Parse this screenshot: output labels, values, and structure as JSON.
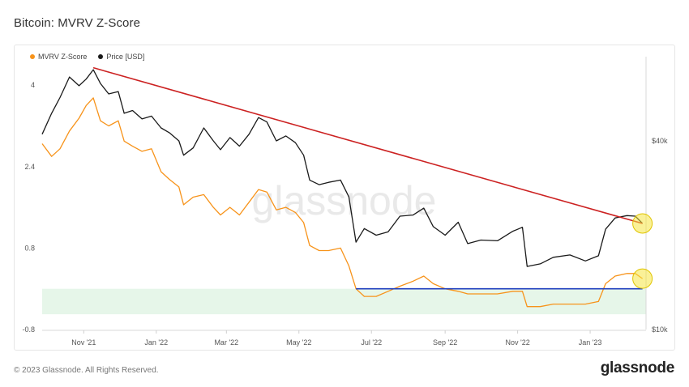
{
  "title": "Bitcoin: MVRV Z-Score",
  "legend": {
    "mvrv_label": "MVRV Z-Score",
    "price_label": "Price [USD]"
  },
  "watermark": "glassnode",
  "footer": {
    "copyright": "© 2023 Glassnode. All Rights Reserved.",
    "logo": "glassnode"
  },
  "colors": {
    "mvrv": "#f7931a",
    "price": "#1a1a1a",
    "trend_price": "#cc2222",
    "trend_mvrv": "#1f3fbf",
    "band": "#e6f6e9",
    "highlight": "#f5e642"
  },
  "chart_data": {
    "type": "line",
    "title": "Bitcoin: MVRV Z-Score",
    "x_tick_labels": [
      "Nov '21",
      "Jan '22",
      "Mar '22",
      "May '22",
      "Jul '22",
      "Sep '22",
      "Nov '22",
      "Jan '23"
    ],
    "x_tick_dates": [
      "2021-11-01",
      "2022-01-01",
      "2022-03-01",
      "2022-05-01",
      "2022-07-01",
      "2022-09-01",
      "2022-11-01",
      "2023-01-01"
    ],
    "x_range": [
      "2021-09-27",
      "2023-02-17"
    ],
    "y_left": {
      "ticks": [
        -0.8,
        0.8,
        2.4,
        4
      ],
      "tick_labels": [
        "-0.8",
        "0.8",
        "2.4",
        "4"
      ],
      "range": [
        -0.8,
        4.4
      ]
    },
    "y_right": {
      "scale": "log",
      "ticks": [
        10000,
        40000
      ],
      "tick_labels": [
        "$10k",
        "$40k"
      ],
      "range": [
        10000,
        70000
      ]
    },
    "green_band": [
      -0.5,
      0.0
    ],
    "series": [
      {
        "name": "MVRV Z-Score",
        "axis": "left",
        "points": [
          [
            "2021-09-27",
            2.85
          ],
          [
            "2021-10-05",
            2.6
          ],
          [
            "2021-10-12",
            2.75
          ],
          [
            "2021-10-20",
            3.1
          ],
          [
            "2021-10-28",
            3.35
          ],
          [
            "2021-11-03",
            3.6
          ],
          [
            "2021-11-09",
            3.75
          ],
          [
            "2021-11-15",
            3.3
          ],
          [
            "2021-11-22",
            3.2
          ],
          [
            "2021-11-30",
            3.3
          ],
          [
            "2021-12-05",
            2.9
          ],
          [
            "2021-12-12",
            2.8
          ],
          [
            "2021-12-20",
            2.7
          ],
          [
            "2021-12-28",
            2.75
          ],
          [
            "2022-01-05",
            2.3
          ],
          [
            "2022-01-12",
            2.15
          ],
          [
            "2022-01-20",
            2.0
          ],
          [
            "2022-01-24",
            1.65
          ],
          [
            "2022-02-01",
            1.8
          ],
          [
            "2022-02-10",
            1.85
          ],
          [
            "2022-02-18",
            1.6
          ],
          [
            "2022-02-24",
            1.45
          ],
          [
            "2022-03-04",
            1.6
          ],
          [
            "2022-03-12",
            1.45
          ],
          [
            "2022-03-20",
            1.7
          ],
          [
            "2022-03-28",
            1.95
          ],
          [
            "2022-04-04",
            1.9
          ],
          [
            "2022-04-12",
            1.55
          ],
          [
            "2022-04-20",
            1.6
          ],
          [
            "2022-04-28",
            1.5
          ],
          [
            "2022-05-05",
            1.3
          ],
          [
            "2022-05-10",
            0.85
          ],
          [
            "2022-05-18",
            0.75
          ],
          [
            "2022-05-26",
            0.75
          ],
          [
            "2022-06-05",
            0.8
          ],
          [
            "2022-06-12",
            0.45
          ],
          [
            "2022-06-18",
            0.0
          ],
          [
            "2022-06-25",
            -0.15
          ],
          [
            "2022-07-05",
            -0.15
          ],
          [
            "2022-07-15",
            -0.05
          ],
          [
            "2022-07-25",
            0.05
          ],
          [
            "2022-08-05",
            0.15
          ],
          [
            "2022-08-14",
            0.25
          ],
          [
            "2022-08-22",
            0.1
          ],
          [
            "2022-09-01",
            0.0
          ],
          [
            "2022-09-12",
            -0.05
          ],
          [
            "2022-09-20",
            -0.1
          ],
          [
            "2022-10-01",
            -0.1
          ],
          [
            "2022-10-15",
            -0.1
          ],
          [
            "2022-10-28",
            -0.05
          ],
          [
            "2022-11-05",
            -0.05
          ],
          [
            "2022-11-09",
            -0.35
          ],
          [
            "2022-11-20",
            -0.35
          ],
          [
            "2022-12-01",
            -0.3
          ],
          [
            "2022-12-15",
            -0.3
          ],
          [
            "2022-12-28",
            -0.3
          ],
          [
            "2023-01-08",
            -0.25
          ],
          [
            "2023-01-14",
            0.1
          ],
          [
            "2023-01-22",
            0.25
          ],
          [
            "2023-02-01",
            0.3
          ],
          [
            "2023-02-08",
            0.3
          ],
          [
            "2023-02-14",
            0.2
          ]
        ]
      },
      {
        "name": "Price [USD]",
        "axis": "right",
        "points": [
          [
            "2021-09-27",
            42000
          ],
          [
            "2021-10-05",
            49000
          ],
          [
            "2021-10-12",
            55000
          ],
          [
            "2021-10-20",
            64000
          ],
          [
            "2021-10-28",
            60000
          ],
          [
            "2021-11-03",
            63000
          ],
          [
            "2021-11-09",
            67500
          ],
          [
            "2021-11-15",
            61000
          ],
          [
            "2021-11-22",
            56500
          ],
          [
            "2021-11-30",
            57500
          ],
          [
            "2021-12-05",
            49000
          ],
          [
            "2021-12-12",
            50000
          ],
          [
            "2021-12-20",
            47000
          ],
          [
            "2021-12-28",
            48000
          ],
          [
            "2022-01-05",
            44000
          ],
          [
            "2022-01-12",
            42500
          ],
          [
            "2022-01-20",
            40000
          ],
          [
            "2022-01-24",
            36000
          ],
          [
            "2022-02-01",
            38000
          ],
          [
            "2022-02-10",
            44000
          ],
          [
            "2022-02-18",
            40000
          ],
          [
            "2022-02-24",
            37500
          ],
          [
            "2022-03-04",
            41000
          ],
          [
            "2022-03-12",
            38500
          ],
          [
            "2022-03-20",
            42000
          ],
          [
            "2022-03-28",
            47500
          ],
          [
            "2022-04-04",
            46000
          ],
          [
            "2022-04-12",
            40000
          ],
          [
            "2022-04-20",
            41500
          ],
          [
            "2022-04-28",
            39500
          ],
          [
            "2022-05-05",
            36000
          ],
          [
            "2022-05-10",
            30000
          ],
          [
            "2022-05-18",
            29000
          ],
          [
            "2022-05-26",
            29500
          ],
          [
            "2022-06-05",
            30000
          ],
          [
            "2022-06-12",
            26500
          ],
          [
            "2022-06-18",
            19000
          ],
          [
            "2022-06-25",
            21000
          ],
          [
            "2022-07-05",
            20000
          ],
          [
            "2022-07-15",
            20500
          ],
          [
            "2022-07-25",
            23000
          ],
          [
            "2022-08-05",
            23200
          ],
          [
            "2022-08-14",
            24400
          ],
          [
            "2022-08-22",
            21300
          ],
          [
            "2022-09-01",
            20000
          ],
          [
            "2022-09-12",
            22000
          ],
          [
            "2022-09-20",
            18800
          ],
          [
            "2022-10-01",
            19300
          ],
          [
            "2022-10-15",
            19200
          ],
          [
            "2022-10-28",
            20600
          ],
          [
            "2022-11-05",
            21200
          ],
          [
            "2022-11-09",
            15900
          ],
          [
            "2022-11-20",
            16200
          ],
          [
            "2022-12-01",
            17000
          ],
          [
            "2022-12-15",
            17300
          ],
          [
            "2022-12-28",
            16550
          ],
          [
            "2023-01-08",
            17200
          ],
          [
            "2023-01-14",
            20900
          ],
          [
            "2023-01-22",
            22700
          ],
          [
            "2023-02-01",
            23100
          ],
          [
            "2023-02-08",
            23000
          ],
          [
            "2023-02-14",
            21800
          ]
        ]
      },
      {
        "name": "",
        "axis": "right",
        "role": "resistance-trendline",
        "points": [
          [
            "2021-11-09",
            68500
          ],
          [
            "2023-02-14",
            21800
          ]
        ]
      },
      {
        "name": "",
        "axis": "left",
        "role": "support-line",
        "points": [
          [
            "2022-06-18",
            0.0
          ],
          [
            "2023-02-14",
            0.0
          ]
        ]
      }
    ],
    "highlights": [
      {
        "series": "Price [USD]",
        "date": "2023-02-14"
      },
      {
        "series": "MVRV Z-Score",
        "date": "2023-02-14"
      }
    ],
    "grid": false,
    "legend_position": "top-left"
  }
}
